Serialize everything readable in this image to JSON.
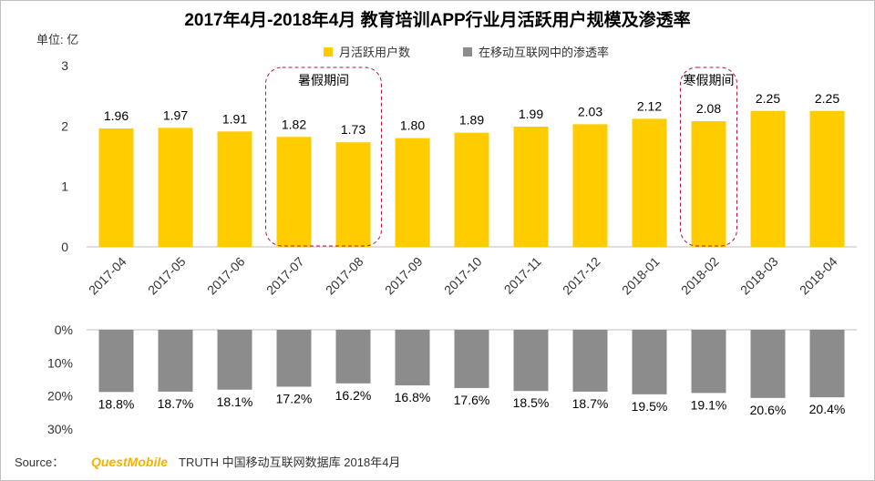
{
  "chart_data": [
    {
      "type": "bar",
      "title": "2017年4月-2018年4月 教育培训APP行业月活跃用户规模及渗透率",
      "ylabel": "单位: 亿",
      "ylim": [
        0,
        3
      ],
      "yticks": [
        "0",
        "1",
        "2",
        "3"
      ],
      "legend": "top-center",
      "categories": [
        "2017-04",
        "2017-05",
        "2017-06",
        "2017-07",
        "2017-08",
        "2017-09",
        "2017-10",
        "2017-11",
        "2017-12",
        "2018-01",
        "2018-02",
        "2018-03",
        "2018-04"
      ],
      "series": [
        {
          "name": "月活跃用户数",
          "color": "#ffcc00",
          "values": [
            1.96,
            1.97,
            1.91,
            1.82,
            1.73,
            1.8,
            1.89,
            1.99,
            2.03,
            2.12,
            2.08,
            2.25,
            2.25
          ],
          "labels": [
            "1.96",
            "1.97",
            "1.91",
            "1.82",
            "1.73",
            "1.80",
            "1.89",
            "1.99",
            "2.03",
            "2.12",
            "2.08",
            "2.25",
            "2.25"
          ]
        }
      ],
      "annotations": [
        {
          "text": "暑假期间",
          "categories": [
            "2017-07",
            "2017-08"
          ]
        },
        {
          "text": "寒假期间",
          "categories": [
            "2018-02"
          ]
        }
      ]
    },
    {
      "type": "bar",
      "orientation": "inverted",
      "ylim": [
        0,
        30
      ],
      "yticks": [
        "0%",
        "10%",
        "20%",
        "30%"
      ],
      "categories": [
        "2017-04",
        "2017-05",
        "2017-06",
        "2017-07",
        "2017-08",
        "2017-09",
        "2017-10",
        "2017-11",
        "2017-12",
        "2018-01",
        "2018-02",
        "2018-03",
        "2018-04"
      ],
      "series": [
        {
          "name": "在移动互联网中的渗透率",
          "color": "#8c8c8c",
          "values": [
            18.8,
            18.7,
            18.1,
            17.2,
            16.2,
            16.8,
            17.6,
            18.5,
            18.7,
            19.5,
            19.1,
            20.6,
            20.4
          ],
          "labels": [
            "18.8%",
            "18.7%",
            "18.1%",
            "17.2%",
            "16.2%",
            "16.8%",
            "17.6%",
            "18.5%",
            "18.7%",
            "19.5%",
            "19.1%",
            "20.6%",
            "20.4%"
          ]
        }
      ]
    }
  ],
  "source": {
    "prefix": "Source：",
    "brand": "QuestMobile",
    "rest": "TRUTH 中国移动互联网数据库 2018年4月"
  }
}
